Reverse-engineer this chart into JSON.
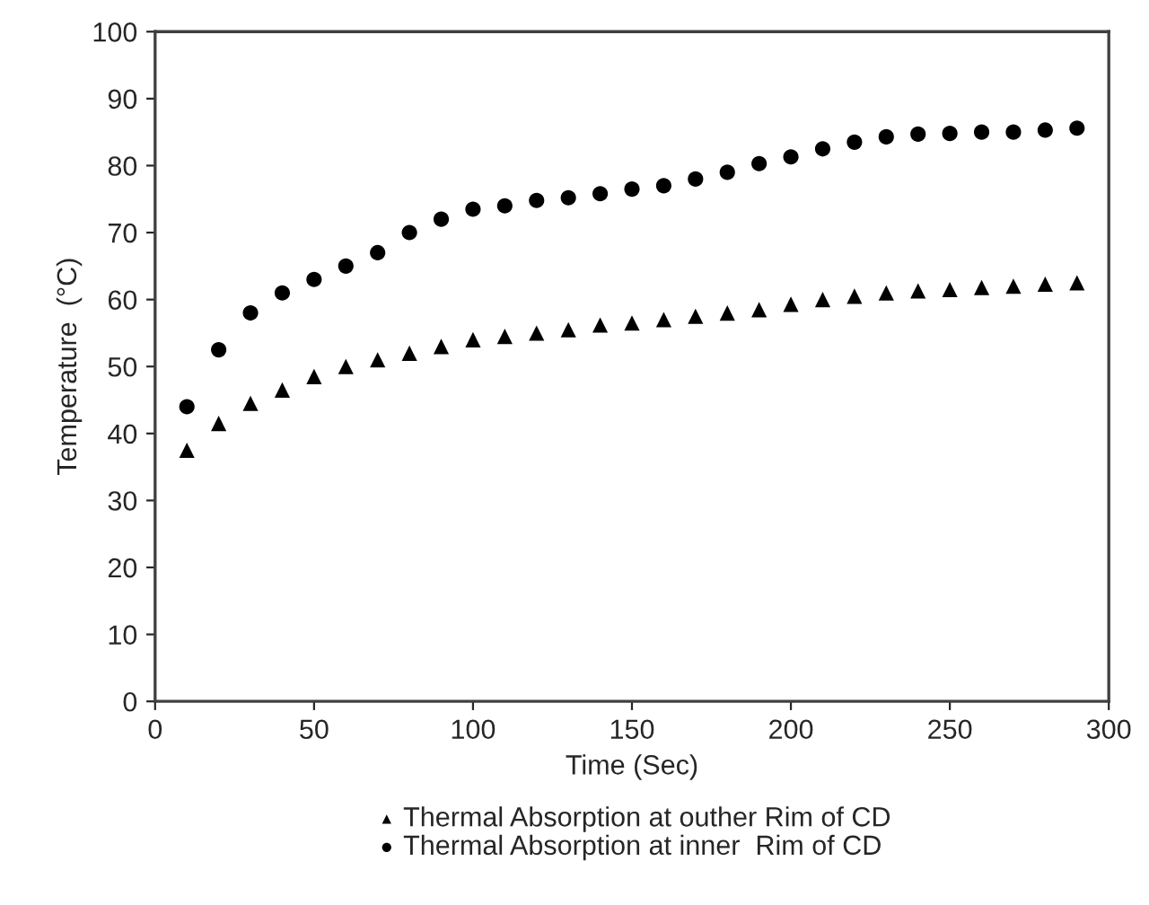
{
  "chart_data": {
    "type": "scatter",
    "xlabel": "Time (Sec)",
    "ylabel": "Temperature  (°C)",
    "x": [
      10,
      20,
      30,
      40,
      50,
      60,
      70,
      80,
      90,
      100,
      110,
      120,
      130,
      140,
      150,
      160,
      170,
      180,
      190,
      200,
      210,
      220,
      230,
      240,
      250,
      260,
      270,
      280,
      290
    ],
    "series": [
      {
        "name": "Thermal Absorption at outher Rim of CD",
        "color": "#000000",
        "marker": "triangle",
        "values": [
          37.5,
          41.5,
          44.5,
          46.5,
          48.5,
          50,
          51,
          52,
          53,
          54,
          54.5,
          55,
          55.5,
          56.2,
          56.5,
          57,
          57.5,
          58,
          58.5,
          59.3,
          60,
          60.5,
          61,
          61.3,
          61.5,
          61.8,
          62,
          62.3,
          62.5
        ]
      },
      {
        "name": "Thermal Absorption at inner  Rim of CD",
        "color": "#000000",
        "marker": "circle",
        "values": [
          44,
          52.5,
          58,
          61,
          63,
          65,
          67,
          70,
          72,
          73.5,
          74,
          74.8,
          75.2,
          75.8,
          76.5,
          77,
          78,
          79,
          80.3,
          81.3,
          82.5,
          83.5,
          84.3,
          84.7,
          84.8,
          85,
          85,
          85.3,
          85.6
        ]
      }
    ],
    "xlim": [
      0,
      300
    ],
    "xticks": [
      0,
      50,
      100,
      150,
      200,
      250,
      300
    ],
    "ylim": [
      0,
      100
    ],
    "yticks": [
      0,
      10,
      20,
      30,
      40,
      50,
      60,
      70,
      80,
      90,
      100
    ],
    "grid": false,
    "legend": "bottom"
  }
}
